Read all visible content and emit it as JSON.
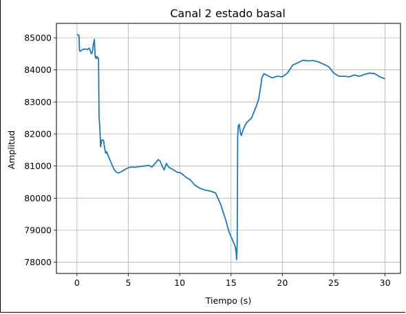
{
  "chart_data": {
    "type": "line",
    "title": "Canal 2 estado basal",
    "xlabel": "Tiempo (s)",
    "ylabel": "Amplitud",
    "xlim": [
      -2,
      31.5
    ],
    "ylim": [
      77650,
      85450
    ],
    "xticks": [
      0,
      5,
      10,
      15,
      20,
      25,
      30
    ],
    "yticks": [
      78000,
      79000,
      80000,
      81000,
      82000,
      83000,
      84000,
      85000
    ],
    "grid": true,
    "color": "#1f77b4",
    "series": [
      {
        "name": "",
        "x": [
          0.0,
          0.1,
          0.2,
          0.25,
          0.3,
          0.4,
          0.5,
          0.6,
          0.8,
          1.0,
          1.2,
          1.4,
          1.5,
          1.6,
          1.7,
          1.75,
          1.8,
          1.85,
          1.9,
          1.95,
          2.0,
          2.1,
          2.15,
          2.2,
          2.25,
          2.3,
          2.4,
          2.5,
          2.6,
          2.7,
          2.8,
          2.9,
          3.0,
          3.2,
          3.4,
          3.6,
          3.8,
          4.0,
          4.3,
          4.6,
          5.0,
          5.3,
          5.6,
          6.0,
          6.5,
          7.0,
          7.3,
          7.6,
          7.9,
          8.1,
          8.3,
          8.5,
          8.7,
          8.9,
          9.0,
          9.2,
          9.5,
          9.8,
          10.0,
          10.3,
          10.6,
          11.0,
          11.5,
          12.0,
          12.5,
          13.0,
          13.5,
          14.0,
          14.5,
          14.8,
          15.0,
          15.2,
          15.4,
          15.5,
          15.55,
          15.6,
          15.65,
          15.7,
          15.8,
          15.9,
          16.0,
          16.2,
          16.5,
          17.0,
          17.5,
          17.7,
          17.9,
          18.0,
          18.2,
          18.5,
          19.0,
          19.5,
          20.0,
          20.5,
          20.7,
          21.0,
          21.5,
          22.0,
          22.5,
          23.0,
          23.5,
          24.0,
          24.5,
          25.0,
          25.5,
          26.0,
          26.5,
          27.0,
          27.5,
          28.0,
          28.5,
          29.0,
          29.5,
          30.0
        ],
        "y": [
          85080,
          85100,
          85060,
          84600,
          84580,
          84600,
          84620,
          84640,
          84650,
          84630,
          84680,
          84500,
          84550,
          84800,
          84950,
          84500,
          84380,
          84420,
          84350,
          84400,
          84400,
          84350,
          82550,
          82300,
          82050,
          81600,
          81800,
          81820,
          81780,
          81550,
          81400,
          81450,
          81350,
          81200,
          81050,
          80900,
          80820,
          80780,
          80820,
          80880,
          80950,
          80970,
          80960,
          80980,
          81000,
          81020,
          80970,
          81080,
          81200,
          81160,
          81000,
          80880,
          81080,
          80980,
          80950,
          80920,
          80860,
          80800,
          80800,
          80740,
          80650,
          80580,
          80400,
          80300,
          80250,
          80220,
          80160,
          79800,
          79300,
          78950,
          78800,
          78650,
          78500,
          78300,
          78080,
          78600,
          81900,
          82250,
          82300,
          82050,
          81950,
          82150,
          82350,
          82500,
          82900,
          83100,
          83500,
          83750,
          83880,
          83830,
          83750,
          83800,
          83780,
          83900,
          84000,
          84150,
          84220,
          84300,
          84280,
          84290,
          84250,
          84180,
          84100,
          83900,
          83800,
          83800,
          83780,
          83840,
          83800,
          83860,
          83900,
          83880,
          83780,
          83720
        ]
      }
    ]
  }
}
